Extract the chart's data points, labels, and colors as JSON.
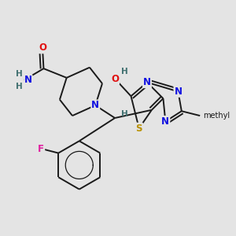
{
  "background_color": "#e4e4e4",
  "bond_color": "#1a1a1a",
  "bond_width": 1.4,
  "atom_colors": {
    "C": "#1a1a1a",
    "N": "#1010e0",
    "O": "#e01010",
    "S": "#b89000",
    "F": "#e020a0",
    "H": "#407070"
  },
  "font_size": 8.5,
  "figsize": [
    3.0,
    3.0
  ],
  "dpi": 100
}
